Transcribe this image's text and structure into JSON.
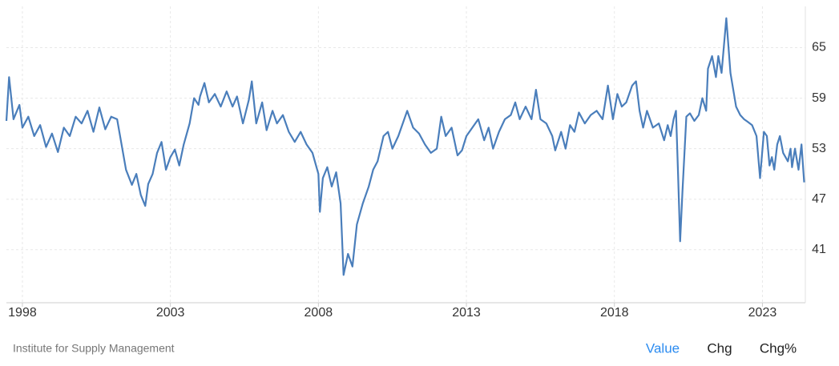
{
  "chart_data": {
    "type": "line",
    "color": "#4a7ebb",
    "grid": true,
    "xlim": [
      1997.46,
      2024.45
    ],
    "xticks": [
      1998,
      2003,
      2008,
      2013,
      2018,
      2023
    ],
    "ylim": [
      34.7,
      69.9
    ],
    "yticks": [
      41,
      47,
      53,
      59,
      65
    ],
    "x": [
      1997.46,
      1997.55,
      1997.7,
      1997.9,
      1998.0,
      1998.2,
      1998.4,
      1998.6,
      1998.8,
      1999.0,
      1999.2,
      1999.4,
      1999.6,
      1999.8,
      2000.0,
      2000.2,
      2000.4,
      2000.6,
      2000.8,
      2001.0,
      2001.2,
      2001.5,
      2001.7,
      2001.85,
      2002.0,
      2002.15,
      2002.25,
      2002.4,
      2002.55,
      2002.7,
      2002.85,
      2003.0,
      2003.15,
      2003.3,
      2003.45,
      2003.65,
      2003.8,
      2003.95,
      2004.0,
      2004.15,
      2004.3,
      2004.5,
      2004.7,
      2004.9,
      2005.1,
      2005.25,
      2005.45,
      2005.65,
      2005.75,
      2005.9,
      2006.1,
      2006.25,
      2006.45,
      2006.6,
      2006.8,
      2007.0,
      2007.2,
      2007.4,
      2007.6,
      2007.8,
      2008.0,
      2008.05,
      2008.15,
      2008.3,
      2008.45,
      2008.6,
      2008.75,
      2008.85,
      2009.0,
      2009.15,
      2009.3,
      2009.5,
      2009.7,
      2009.85,
      2010.0,
      2010.2,
      2010.35,
      2010.5,
      2010.7,
      2010.85,
      2011.0,
      2011.2,
      2011.4,
      2011.6,
      2011.8,
      2012.0,
      2012.15,
      2012.3,
      2012.5,
      2012.7,
      2012.85,
      2013.0,
      2013.2,
      2013.4,
      2013.6,
      2013.75,
      2013.9,
      2014.1,
      2014.3,
      2014.5,
      2014.65,
      2014.8,
      2015.0,
      2015.2,
      2015.35,
      2015.5,
      2015.7,
      2015.9,
      2016.0,
      2016.2,
      2016.35,
      2016.5,
      2016.65,
      2016.8,
      2017.0,
      2017.2,
      2017.4,
      2017.6,
      2017.78,
      2017.95,
      2018.1,
      2018.25,
      2018.4,
      2018.6,
      2018.73,
      2018.85,
      2018.97,
      2019.1,
      2019.3,
      2019.5,
      2019.68,
      2019.8,
      2019.9,
      2020.0,
      2020.08,
      2020.15,
      2020.22,
      2020.3,
      2020.43,
      2020.55,
      2020.7,
      2020.85,
      2020.97,
      2021.1,
      2021.16,
      2021.3,
      2021.43,
      2021.51,
      2021.62,
      2021.78,
      2021.92,
      2022.11,
      2022.25,
      2022.38,
      2022.5,
      2022.65,
      2022.8,
      2022.92,
      2023.05,
      2023.15,
      2023.24,
      2023.32,
      2023.4,
      2023.5,
      2023.59,
      2023.7,
      2023.86,
      2023.95,
      2024.0,
      2024.1,
      2024.22,
      2024.32,
      2024.41
    ],
    "values": [
      56.3,
      61.5,
      56.5,
      58.2,
      55.5,
      56.8,
      54.5,
      55.8,
      53.2,
      54.8,
      52.6,
      55.5,
      54.5,
      56.8,
      56.0,
      57.5,
      55.0,
      57.9,
      55.3,
      56.8,
      56.5,
      50.5,
      48.7,
      50.0,
      47.5,
      46.2,
      48.8,
      50.0,
      52.5,
      53.8,
      50.5,
      52.0,
      52.9,
      51.0,
      53.5,
      56.0,
      59.0,
      58.2,
      59.2,
      60.8,
      58.5,
      59.5,
      58.0,
      59.8,
      58.0,
      59.2,
      56.0,
      58.8,
      61.0,
      56.0,
      58.5,
      55.2,
      57.5,
      56.0,
      57.0,
      55.0,
      53.8,
      55.0,
      53.5,
      52.5,
      50.0,
      45.5,
      49.5,
      50.8,
      48.5,
      50.2,
      46.5,
      38.0,
      40.5,
      39.0,
      44.0,
      46.5,
      48.5,
      50.5,
      51.5,
      54.5,
      55.0,
      53.0,
      54.5,
      56.0,
      57.5,
      55.5,
      54.8,
      53.5,
      52.5,
      53.0,
      56.8,
      54.5,
      55.5,
      52.2,
      52.8,
      54.5,
      55.5,
      56.5,
      54.0,
      55.5,
      53.0,
      55.0,
      56.5,
      57.0,
      58.5,
      56.5,
      58.0,
      56.5,
      60.0,
      56.5,
      56.0,
      54.5,
      52.8,
      55.0,
      53.0,
      55.8,
      55.0,
      57.3,
      56.0,
      57.0,
      57.5,
      56.5,
      60.5,
      56.5,
      59.5,
      58.0,
      58.5,
      60.5,
      61.0,
      57.5,
      55.5,
      57.5,
      55.5,
      56.0,
      54.0,
      55.8,
      54.5,
      56.5,
      57.5,
      50.0,
      42.0,
      48.0,
      56.8,
      57.2,
      56.3,
      57.0,
      59.0,
      57.5,
      62.5,
      64.0,
      61.5,
      64.0,
      62.0,
      68.5,
      62.0,
      58.0,
      57.0,
      56.5,
      56.2,
      55.8,
      54.5,
      49.5,
      55.0,
      54.5,
      51.0,
      52.0,
      50.5,
      53.5,
      54.5,
      52.5,
      51.5,
      53.0,
      50.8,
      53.0,
      50.5,
      53.5,
      49.0
    ],
    "source": "Institute for Supply Management",
    "tabs": [
      "Value",
      "Chg",
      "Chg%"
    ]
  }
}
